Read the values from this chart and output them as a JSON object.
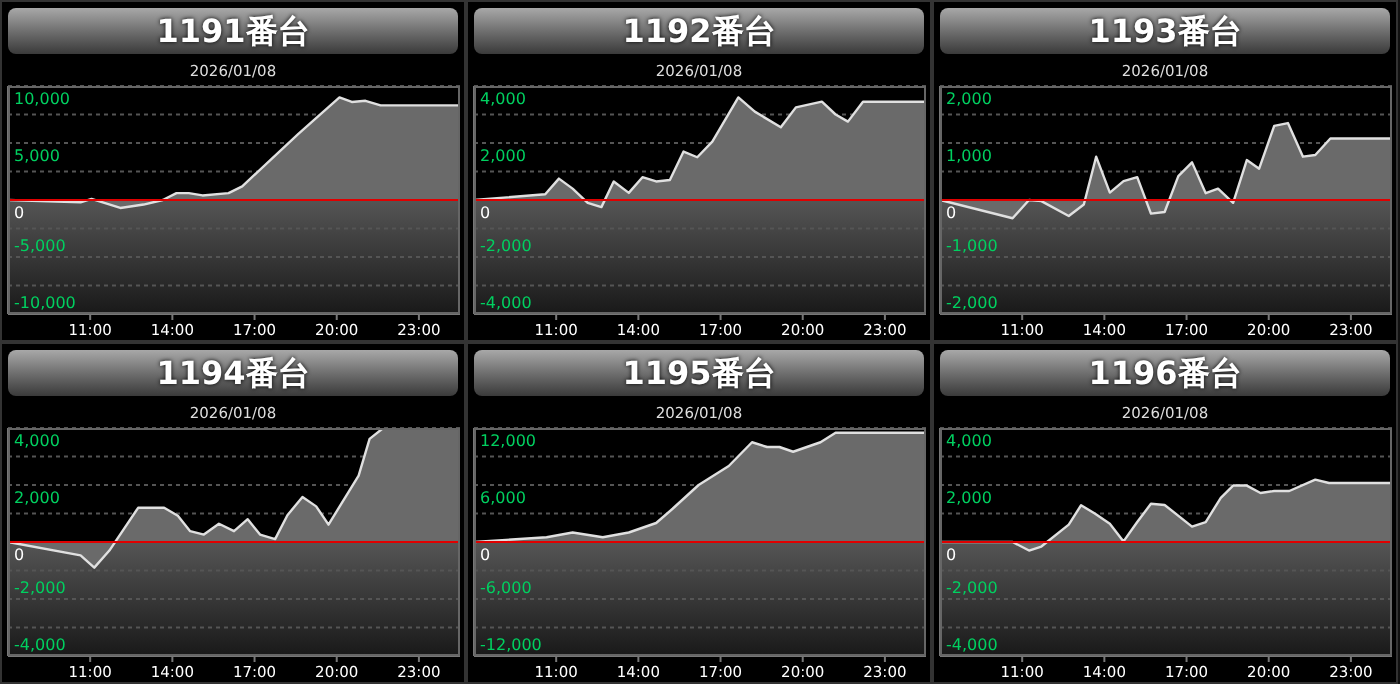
{
  "chart_data": [
    {
      "type": "area",
      "title": "1191番台",
      "subtitle": "2026/01/08",
      "color": "#e0e0e0",
      "grid": "y",
      "xlim": [
        8,
        24.5
      ],
      "xticks": [
        {
          "value": 11,
          "label": "11:00"
        },
        {
          "value": 14,
          "label": "14:00"
        },
        {
          "value": 17,
          "label": "17:00"
        },
        {
          "value": 20,
          "label": "20:00"
        },
        {
          "value": 23,
          "label": "23:00"
        }
      ],
      "ylim": [
        -10000,
        10000
      ],
      "yticks": [
        {
          "value": -10000,
          "label": "-10,000"
        },
        {
          "value": -7500,
          "label": null
        },
        {
          "value": -5000,
          "label": "-5,000"
        },
        {
          "value": -2500,
          "label": null
        },
        {
          "value": 0,
          "label": "0"
        },
        {
          "value": 2500,
          "label": null
        },
        {
          "value": 5000,
          "label": "5,000"
        },
        {
          "value": 7500,
          "label": null
        },
        {
          "value": 10000,
          "label": "10,000"
        }
      ],
      "ref_lines": [
        {
          "axis": "y",
          "value": 0,
          "color": "#e00000"
        }
      ],
      "x": [
        8,
        10.65,
        11.05,
        12.1,
        12.95,
        13.65,
        14.15,
        14.6,
        15.1,
        16.05,
        16.55,
        18.6,
        20.1,
        20.55,
        21.05,
        21.6,
        24.5
      ],
      "values": [
        0,
        -200,
        100,
        -700,
        -400,
        0,
        600,
        600,
        400,
        600,
        1200,
        5800,
        9000,
        8600,
        8700,
        8300,
        8300
      ]
    },
    {
      "type": "area",
      "title": "1192番台",
      "subtitle": "2026/01/08",
      "color": "#e0e0e0",
      "grid": "y",
      "xlim": [
        8,
        24.5
      ],
      "xticks": [
        {
          "value": 11,
          "label": "11:00"
        },
        {
          "value": 14,
          "label": "14:00"
        },
        {
          "value": 17,
          "label": "17:00"
        },
        {
          "value": 20,
          "label": "20:00"
        },
        {
          "value": 23,
          "label": "23:00"
        }
      ],
      "ylim": [
        -4000,
        4000
      ],
      "yticks": [
        {
          "value": -4000,
          "label": "-4,000"
        },
        {
          "value": -3000,
          "label": null
        },
        {
          "value": -2000,
          "label": "-2,000"
        },
        {
          "value": -1000,
          "label": null
        },
        {
          "value": 0,
          "label": "0"
        },
        {
          "value": 1000,
          "label": null
        },
        {
          "value": 2000,
          "label": "2,000"
        },
        {
          "value": 3000,
          "label": null
        },
        {
          "value": 4000,
          "label": "4,000"
        }
      ],
      "ref_lines": [
        {
          "axis": "y",
          "value": 0,
          "color": "#e00000"
        }
      ],
      "x": [
        8,
        10.6,
        11.1,
        11.6,
        12.15,
        12.65,
        13.1,
        13.65,
        14.15,
        14.65,
        15.15,
        15.65,
        16.15,
        16.7,
        17.65,
        18.25,
        19.2,
        19.75,
        20.7,
        21.2,
        21.65,
        22.2,
        24.5
      ],
      "values": [
        0,
        200,
        750,
        400,
        -100,
        -250,
        650,
        250,
        800,
        650,
        700,
        1700,
        1500,
        2050,
        3600,
        3100,
        2550,
        3250,
        3450,
        3000,
        2750,
        3450,
        3450
      ]
    },
    {
      "type": "area",
      "title": "1193番台",
      "subtitle": "2026/01/08",
      "color": "#e0e0e0",
      "grid": "y",
      "xlim": [
        8,
        24.5
      ],
      "xticks": [
        {
          "value": 11,
          "label": "11:00"
        },
        {
          "value": 14,
          "label": "14:00"
        },
        {
          "value": 17,
          "label": "17:00"
        },
        {
          "value": 20,
          "label": "20:00"
        },
        {
          "value": 23,
          "label": "23:00"
        }
      ],
      "ylim": [
        -2000,
        2000
      ],
      "yticks": [
        {
          "value": -2000,
          "label": "-2,000"
        },
        {
          "value": -1500,
          "label": null
        },
        {
          "value": -1000,
          "label": "-1,000"
        },
        {
          "value": -500,
          "label": null
        },
        {
          "value": 0,
          "label": "0"
        },
        {
          "value": 500,
          "label": null
        },
        {
          "value": 1000,
          "label": "1,000"
        },
        {
          "value": 1500,
          "label": null
        },
        {
          "value": 2000,
          "label": "2,000"
        }
      ],
      "ref_lines": [
        {
          "axis": "y",
          "value": 0,
          "color": "#e00000"
        }
      ],
      "x": [
        8,
        10.65,
        11.25,
        11.7,
        12.7,
        13.25,
        13.7,
        14.2,
        14.7,
        15.2,
        15.7,
        16.2,
        16.7,
        17.2,
        17.7,
        18.15,
        18.7,
        19.2,
        19.65,
        20.2,
        20.7,
        21.25,
        21.7,
        22.25,
        24.5
      ],
      "values": [
        0,
        -320,
        0,
        -20,
        -280,
        -80,
        760,
        130,
        330,
        400,
        -240,
        -210,
        420,
        660,
        120,
        200,
        -50,
        700,
        550,
        1300,
        1350,
        760,
        790,
        1080,
        1080
      ]
    },
    {
      "type": "area",
      "title": "1194番台",
      "subtitle": "2026/01/08",
      "color": "#e0e0e0",
      "grid": "y",
      "xlim": [
        8,
        24.5
      ],
      "xticks": [
        {
          "value": 11,
          "label": "11:00"
        },
        {
          "value": 14,
          "label": "14:00"
        },
        {
          "value": 17,
          "label": "17:00"
        },
        {
          "value": 20,
          "label": "20:00"
        },
        {
          "value": 23,
          "label": "23:00"
        }
      ],
      "ylim": [
        -4000,
        4000
      ],
      "yticks": [
        {
          "value": -4000,
          "label": "-4,000"
        },
        {
          "value": -3000,
          "label": null
        },
        {
          "value": -2000,
          "label": "-2,000"
        },
        {
          "value": -1000,
          "label": null
        },
        {
          "value": 0,
          "label": "0"
        },
        {
          "value": 1000,
          "label": null
        },
        {
          "value": 2000,
          "label": "2,000"
        },
        {
          "value": 3000,
          "label": null
        },
        {
          "value": 4000,
          "label": "4,000"
        }
      ],
      "ref_lines": [
        {
          "axis": "y",
          "value": 0,
          "color": "#e00000"
        }
      ],
      "x": [
        8,
        10.65,
        11.15,
        11.7,
        12.75,
        13.7,
        14.2,
        14.65,
        15.15,
        15.7,
        16.25,
        16.75,
        17.2,
        17.75,
        18.2,
        18.75,
        19.25,
        19.7,
        20.8,
        21.2,
        21.7,
        24.5
      ],
      "values": [
        0,
        -470,
        -900,
        -300,
        1200,
        1200,
        920,
        380,
        260,
        640,
        380,
        800,
        260,
        100,
        940,
        1580,
        1250,
        610,
        2330,
        3620,
        4000,
        4000
      ]
    },
    {
      "type": "area",
      "title": "1195番台",
      "subtitle": "2026/01/08",
      "color": "#e0e0e0",
      "grid": "y",
      "xlim": [
        8,
        24.5
      ],
      "xticks": [
        {
          "value": 11,
          "label": "11:00"
        },
        {
          "value": 14,
          "label": "14:00"
        },
        {
          "value": 17,
          "label": "17:00"
        },
        {
          "value": 20,
          "label": "20:00"
        },
        {
          "value": 23,
          "label": "23:00"
        }
      ],
      "ylim": [
        -12000,
        12000
      ],
      "yticks": [
        {
          "value": -12000,
          "label": "-12,000"
        },
        {
          "value": -9000,
          "label": null
        },
        {
          "value": -6000,
          "label": "-6,000"
        },
        {
          "value": -3000,
          "label": null
        },
        {
          "value": 0,
          "label": "0"
        },
        {
          "value": 3000,
          "label": null
        },
        {
          "value": 6000,
          "label": "6,000"
        },
        {
          "value": 9000,
          "label": null
        },
        {
          "value": 12000,
          "label": "12,000"
        }
      ],
      "ref_lines": [
        {
          "axis": "y",
          "value": 0,
          "color": "#e00000"
        }
      ],
      "x": [
        8,
        10.65,
        11.6,
        12.7,
        13.65,
        14.65,
        15.25,
        16.2,
        17.3,
        18.15,
        18.7,
        19.15,
        19.65,
        20.15,
        20.65,
        21.2,
        21.7,
        24.5
      ],
      "values": [
        0,
        500,
        1000,
        500,
        1000,
        2000,
        3500,
        6000,
        8000,
        10500,
        10000,
        10000,
        9500,
        10000,
        10500,
        11500,
        11500,
        11500
      ]
    },
    {
      "type": "area",
      "title": "1196番台",
      "subtitle": "2026/01/08",
      "color": "#e0e0e0",
      "grid": "y",
      "xlim": [
        8,
        24.5
      ],
      "xticks": [
        {
          "value": 11,
          "label": "11:00"
        },
        {
          "value": 14,
          "label": "14:00"
        },
        {
          "value": 17,
          "label": "17:00"
        },
        {
          "value": 20,
          "label": "20:00"
        },
        {
          "value": 23,
          "label": "23:00"
        }
      ],
      "ylim": [
        -4000,
        4000
      ],
      "yticks": [
        {
          "value": -4000,
          "label": "-4,000"
        },
        {
          "value": -3000,
          "label": null
        },
        {
          "value": -2000,
          "label": "-2,000"
        },
        {
          "value": -1000,
          "label": null
        },
        {
          "value": 0,
          "label": "0"
        },
        {
          "value": 1000,
          "label": null
        },
        {
          "value": 2000,
          "label": "2,000"
        },
        {
          "value": 3000,
          "label": null
        },
        {
          "value": 4000,
          "label": "4,000"
        }
      ],
      "ref_lines": [
        {
          "axis": "y",
          "value": 0,
          "color": "#e00000"
        }
      ],
      "x": [
        8,
        10.65,
        11.25,
        11.7,
        12.7,
        13.15,
        13.65,
        14.2,
        14.7,
        15.2,
        15.7,
        16.2,
        17.2,
        17.7,
        18.25,
        18.7,
        19.2,
        19.7,
        20.2,
        20.75,
        21.7,
        22.2,
        24.5
      ],
      "values": [
        0,
        0,
        -300,
        -160,
        610,
        1290,
        1000,
        640,
        20,
        700,
        1340,
        1300,
        540,
        700,
        1550,
        1980,
        1980,
        1720,
        1790,
        1790,
        2190,
        2070,
        2070
      ]
    }
  ]
}
